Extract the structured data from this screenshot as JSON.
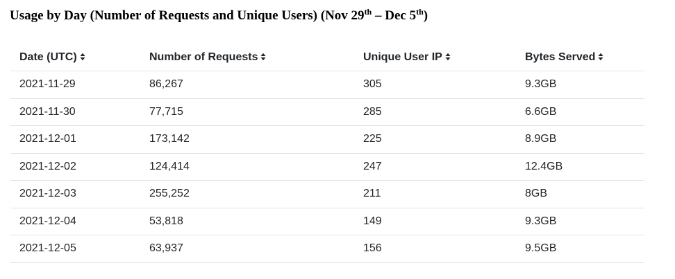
{
  "header": {
    "title": [
      {
        "text": "Usage by Day (Number of Requests and Unique Users) (Nov 29",
        "sup": false
      },
      {
        "text": "th",
        "sup": true
      },
      {
        "text": " – Dec 5",
        "sup": false
      },
      {
        "text": "th",
        "sup": true
      },
      {
        "text": ")",
        "sup": false
      }
    ]
  },
  "table": {
    "columns": [
      "Date (UTC)",
      "Number of Requests",
      "Unique User IP",
      "Bytes Served"
    ],
    "sortable": true,
    "rows": [
      [
        "2021-11-29",
        "86,267",
        "305",
        "9.3GB"
      ],
      [
        "2021-11-30",
        "77,715",
        "285",
        "6.6GB"
      ],
      [
        "2021-12-01",
        "173,142",
        "225",
        "8.9GB"
      ],
      [
        "2021-12-02",
        "124,414",
        "247",
        "12.4GB"
      ],
      [
        "2021-12-03",
        "255,252",
        "211",
        "8GB"
      ],
      [
        "2021-12-04",
        "53,818",
        "149",
        "9.3GB"
      ],
      [
        "2021-12-05",
        "63,937",
        "156",
        "9.5GB"
      ]
    ]
  }
}
